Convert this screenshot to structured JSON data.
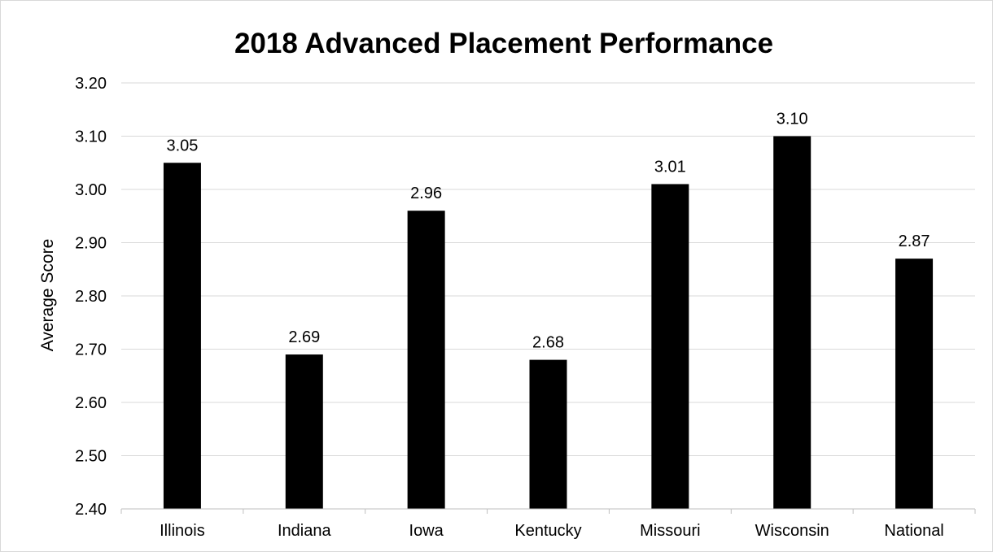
{
  "chart_data": {
    "type": "bar",
    "title": "2018 Advanced Placement Performance",
    "xlabel": "",
    "ylabel": "Average Score",
    "categories": [
      "Illinois",
      "Indiana",
      "Iowa",
      "Kentucky",
      "Missouri",
      "Wisconsin",
      "National"
    ],
    "values": [
      3.05,
      2.69,
      2.96,
      2.68,
      3.01,
      3.1,
      2.87
    ],
    "data_labels": [
      "3.05",
      "2.69",
      "2.96",
      "2.68",
      "3.01",
      "3.10",
      "2.87"
    ],
    "ylim": [
      2.4,
      3.2
    ],
    "yticks": [
      2.4,
      2.5,
      2.6,
      2.7,
      2.8,
      2.9,
      3.0,
      3.1,
      3.2
    ],
    "ytick_labels": [
      "2.40",
      "2.50",
      "2.60",
      "2.70",
      "2.80",
      "2.90",
      "3.00",
      "3.10",
      "3.20"
    ],
    "grid": true,
    "legend": "none",
    "bar_color": "#000000",
    "grid_color": "#d9d9d9"
  }
}
